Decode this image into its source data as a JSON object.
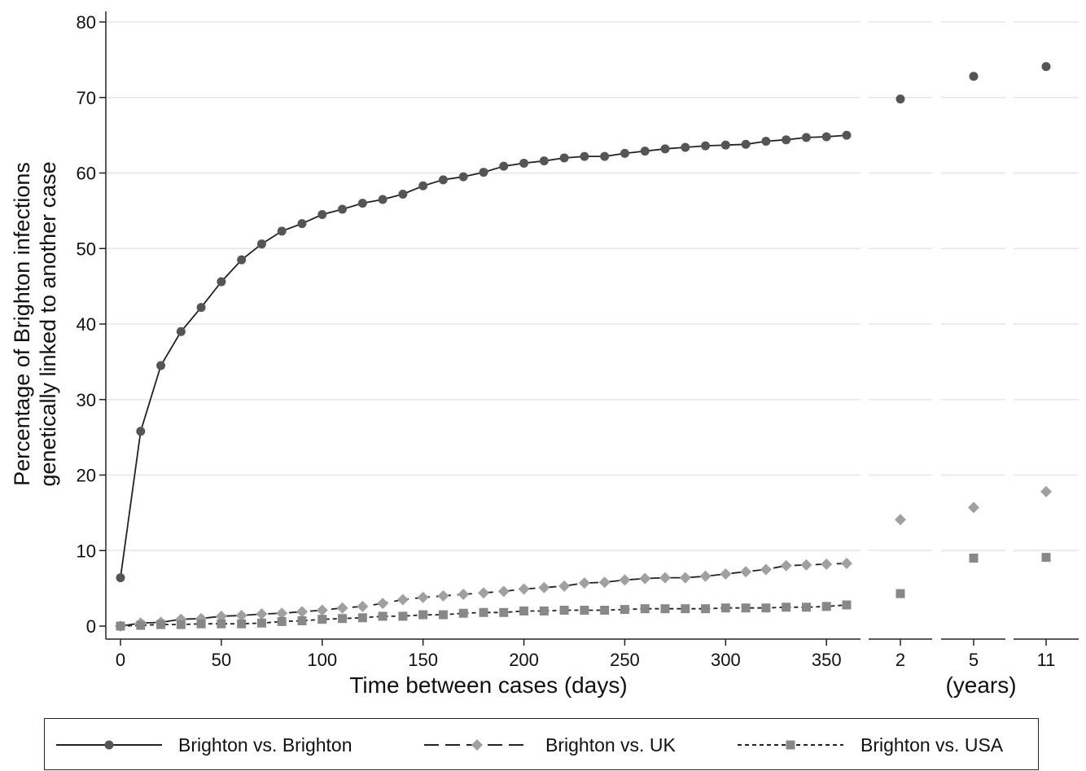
{
  "chart_data": {
    "type": "line",
    "xlabel": "Time between cases (days)",
    "ylabel_line1": "Percentage of Brighton infections",
    "ylabel_line2": "genetically linked to another case",
    "years_label": "(years)",
    "ylim": [
      0,
      80
    ],
    "yticks": [
      0,
      10,
      20,
      30,
      40,
      50,
      60,
      70,
      80
    ],
    "xlim_days": [
      -7,
      370
    ],
    "xticks_days": [
      0,
      50,
      100,
      150,
      200,
      250,
      300,
      350
    ],
    "year_categories": [
      "2",
      "5",
      "11"
    ],
    "grid": true,
    "legend_position": "bottom",
    "x": [
      0,
      10,
      20,
      30,
      40,
      50,
      60,
      70,
      80,
      90,
      100,
      110,
      120,
      130,
      140,
      150,
      160,
      170,
      180,
      190,
      200,
      210,
      220,
      230,
      240,
      250,
      260,
      270,
      280,
      290,
      300,
      310,
      320,
      330,
      340,
      350,
      360
    ],
    "series": [
      {
        "name": "Brighton vs. Brighton",
        "color": "#555555",
        "marker": "circle",
        "dash": "solid",
        "values": [
          6.4,
          25.8,
          34.5,
          39.0,
          42.2,
          45.6,
          48.5,
          50.6,
          52.3,
          53.3,
          54.5,
          55.2,
          56.0,
          56.5,
          57.2,
          58.3,
          59.1,
          59.5,
          60.1,
          60.9,
          61.3,
          61.6,
          62.0,
          62.2,
          62.2,
          62.6,
          62.9,
          63.2,
          63.4,
          63.6,
          63.7,
          63.8,
          64.2,
          64.4,
          64.7,
          64.8,
          65.0
        ],
        "year_values": [
          69.8,
          72.8,
          74.1
        ]
      },
      {
        "name": "Brighton vs. UK",
        "color": "#a0a0a0",
        "marker": "diamond",
        "dash": "long",
        "values": [
          0.0,
          0.4,
          0.5,
          0.9,
          1.0,
          1.3,
          1.4,
          1.6,
          1.7,
          1.9,
          2.1,
          2.4,
          2.6,
          3.0,
          3.5,
          3.8,
          4.0,
          4.2,
          4.4,
          4.6,
          4.9,
          5.1,
          5.3,
          5.7,
          5.8,
          6.1,
          6.3,
          6.4,
          6.4,
          6.6,
          6.9,
          7.2,
          7.5,
          8.0,
          8.1,
          8.2,
          8.3
        ],
        "year_values": [
          14.1,
          15.7,
          17.8
        ]
      },
      {
        "name": "Brighton vs. USA",
        "color": "#888888",
        "marker": "square",
        "dash": "short",
        "values": [
          0.0,
          0.1,
          0.2,
          0.2,
          0.3,
          0.3,
          0.3,
          0.4,
          0.6,
          0.7,
          0.9,
          1.0,
          1.1,
          1.3,
          1.3,
          1.5,
          1.5,
          1.7,
          1.8,
          1.8,
          2.0,
          2.0,
          2.1,
          2.1,
          2.1,
          2.2,
          2.3,
          2.3,
          2.3,
          2.3,
          2.4,
          2.4,
          2.4,
          2.5,
          2.5,
          2.6,
          2.8
        ],
        "year_values": [
          4.3,
          9.0,
          9.1
        ]
      }
    ]
  }
}
